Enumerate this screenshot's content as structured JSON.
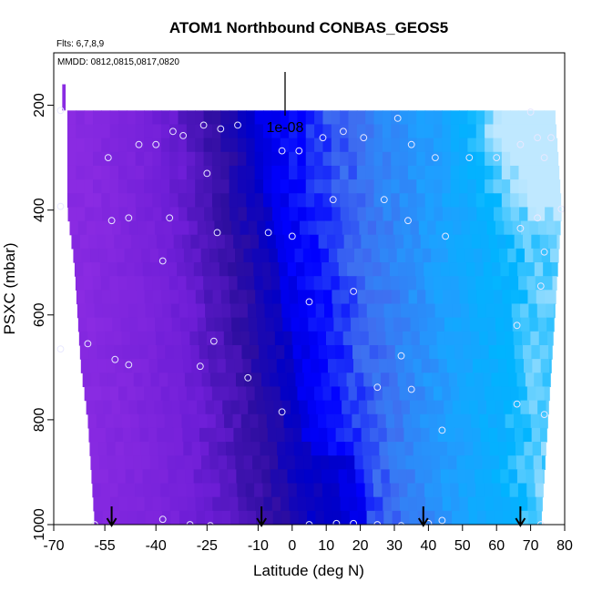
{
  "chart_data": {
    "type": "heatmap",
    "title": "ATOM1 Northbound CONBAS_GEOS5",
    "flights_note": "Flts: 6,7,8,9",
    "dates_note": "MMDD: 0812,0815,0817,0820",
    "xlabel": "Latitude (deg N)",
    "ylabel": "PSXC (mbar)",
    "xlim": [
      -70,
      80
    ],
    "ylim": [
      1000,
      100
    ],
    "y_inverted": true,
    "grid": false,
    "scale_bar_label": "1e-08",
    "x_ticks": [
      -70,
      -55,
      -40,
      -25,
      -10,
      0,
      10,
      20,
      30,
      40,
      50,
      60,
      70,
      80
    ],
    "x_tick_labels": [
      "-70",
      "-55",
      "-40",
      "-25",
      "-10",
      "0",
      "10",
      "20",
      "30",
      "40",
      "50",
      "60",
      "70",
      "80"
    ],
    "y_ticks": [
      200,
      400,
      600,
      800,
      1000
    ],
    "y_tick_labels": [
      "200",
      "400",
      "600",
      "800",
      "1000"
    ],
    "color_scale": [
      "#8a2be2",
      "#6a1fd6",
      "#2a0ea0",
      "#0000c8",
      "#0000ff",
      "#3f6ef0",
      "#1ea0ff",
      "#00b4ff",
      "#bfe8ff"
    ],
    "profile_markers_lat": [
      -53,
      -9,
      38.5,
      67
    ],
    "field_extent": [
      {
        "p": 210,
        "lat_min": -66,
        "lat_max": 77
      },
      {
        "p": 300,
        "lat_min": -66,
        "lat_max": 78
      },
      {
        "p": 400,
        "lat_min": -66,
        "lat_max": 79
      },
      {
        "p": 500,
        "lat_min": -64,
        "lat_max": 78
      },
      {
        "p": 600,
        "lat_min": -63,
        "lat_max": 77
      },
      {
        "p": 700,
        "lat_min": -62,
        "lat_max": 76
      },
      {
        "p": 800,
        "lat_min": -60,
        "lat_max": 75
      },
      {
        "p": 900,
        "lat_min": -59,
        "lat_max": 74
      },
      {
        "p": 1000,
        "lat_min": -58,
        "lat_max": 73
      }
    ],
    "observations": [
      {
        "lat": -68,
        "p": 210
      },
      {
        "lat": -54,
        "p": 300
      },
      {
        "lat": -45,
        "p": 275
      },
      {
        "lat": -40,
        "p": 275
      },
      {
        "lat": -35,
        "p": 250
      },
      {
        "lat": -32,
        "p": 258
      },
      {
        "lat": -26,
        "p": 238
      },
      {
        "lat": -21,
        "p": 245
      },
      {
        "lat": -16,
        "p": 238
      },
      {
        "lat": -3,
        "p": 287
      },
      {
        "lat": 2,
        "p": 287
      },
      {
        "lat": 9,
        "p": 262
      },
      {
        "lat": 15,
        "p": 250
      },
      {
        "lat": 21,
        "p": 262
      },
      {
        "lat": 31,
        "p": 225
      },
      {
        "lat": 35,
        "p": 275
      },
      {
        "lat": 42,
        "p": 300
      },
      {
        "lat": 52,
        "p": 300
      },
      {
        "lat": 60,
        "p": 300
      },
      {
        "lat": 67,
        "p": 275
      },
      {
        "lat": 70,
        "p": 213
      },
      {
        "lat": 72,
        "p": 262
      },
      {
        "lat": 74,
        "p": 300
      },
      {
        "lat": 76,
        "p": 262
      },
      {
        "lat": -25,
        "p": 330
      },
      {
        "lat": -68,
        "p": 393
      },
      {
        "lat": -53,
        "p": 420
      },
      {
        "lat": -48,
        "p": 415
      },
      {
        "lat": -36,
        "p": 415
      },
      {
        "lat": -22,
        "p": 443
      },
      {
        "lat": -7,
        "p": 443
      },
      {
        "lat": 0,
        "p": 450
      },
      {
        "lat": 12,
        "p": 380
      },
      {
        "lat": 27,
        "p": 380
      },
      {
        "lat": 34,
        "p": 420
      },
      {
        "lat": 45,
        "p": 450
      },
      {
        "lat": 67,
        "p": 435
      },
      {
        "lat": 72,
        "p": 415
      },
      {
        "lat": 79,
        "p": 398
      },
      {
        "lat": 74,
        "p": 480
      },
      {
        "lat": -38,
        "p": 497
      },
      {
        "lat": 18,
        "p": 555
      },
      {
        "lat": 73,
        "p": 545
      },
      {
        "lat": 5,
        "p": 575
      },
      {
        "lat": 66,
        "p": 620
      },
      {
        "lat": -68,
        "p": 665
      },
      {
        "lat": -60,
        "p": 655
      },
      {
        "lat": -52,
        "p": 685
      },
      {
        "lat": -48,
        "p": 695
      },
      {
        "lat": -23,
        "p": 650
      },
      {
        "lat": -27,
        "p": 698
      },
      {
        "lat": -13,
        "p": 720
      },
      {
        "lat": 32,
        "p": 678
      },
      {
        "lat": 25,
        "p": 738
      },
      {
        "lat": 35,
        "p": 742
      },
      {
        "lat": 66,
        "p": 770
      },
      {
        "lat": -3,
        "p": 785
      },
      {
        "lat": 74,
        "p": 790
      },
      {
        "lat": 44,
        "p": 820
      },
      {
        "lat": -58,
        "p": 1000
      },
      {
        "lat": -38,
        "p": 990
      },
      {
        "lat": -30,
        "p": 1000
      },
      {
        "lat": -24,
        "p": 1002
      },
      {
        "lat": 5,
        "p": 1000
      },
      {
        "lat": 13,
        "p": 998
      },
      {
        "lat": 18,
        "p": 998
      },
      {
        "lat": 25,
        "p": 1000
      },
      {
        "lat": 32,
        "p": 1002
      },
      {
        "lat": 40,
        "p": 998
      },
      {
        "lat": 44,
        "p": 992
      },
      {
        "lat": 73,
        "p": 1000
      }
    ]
  }
}
